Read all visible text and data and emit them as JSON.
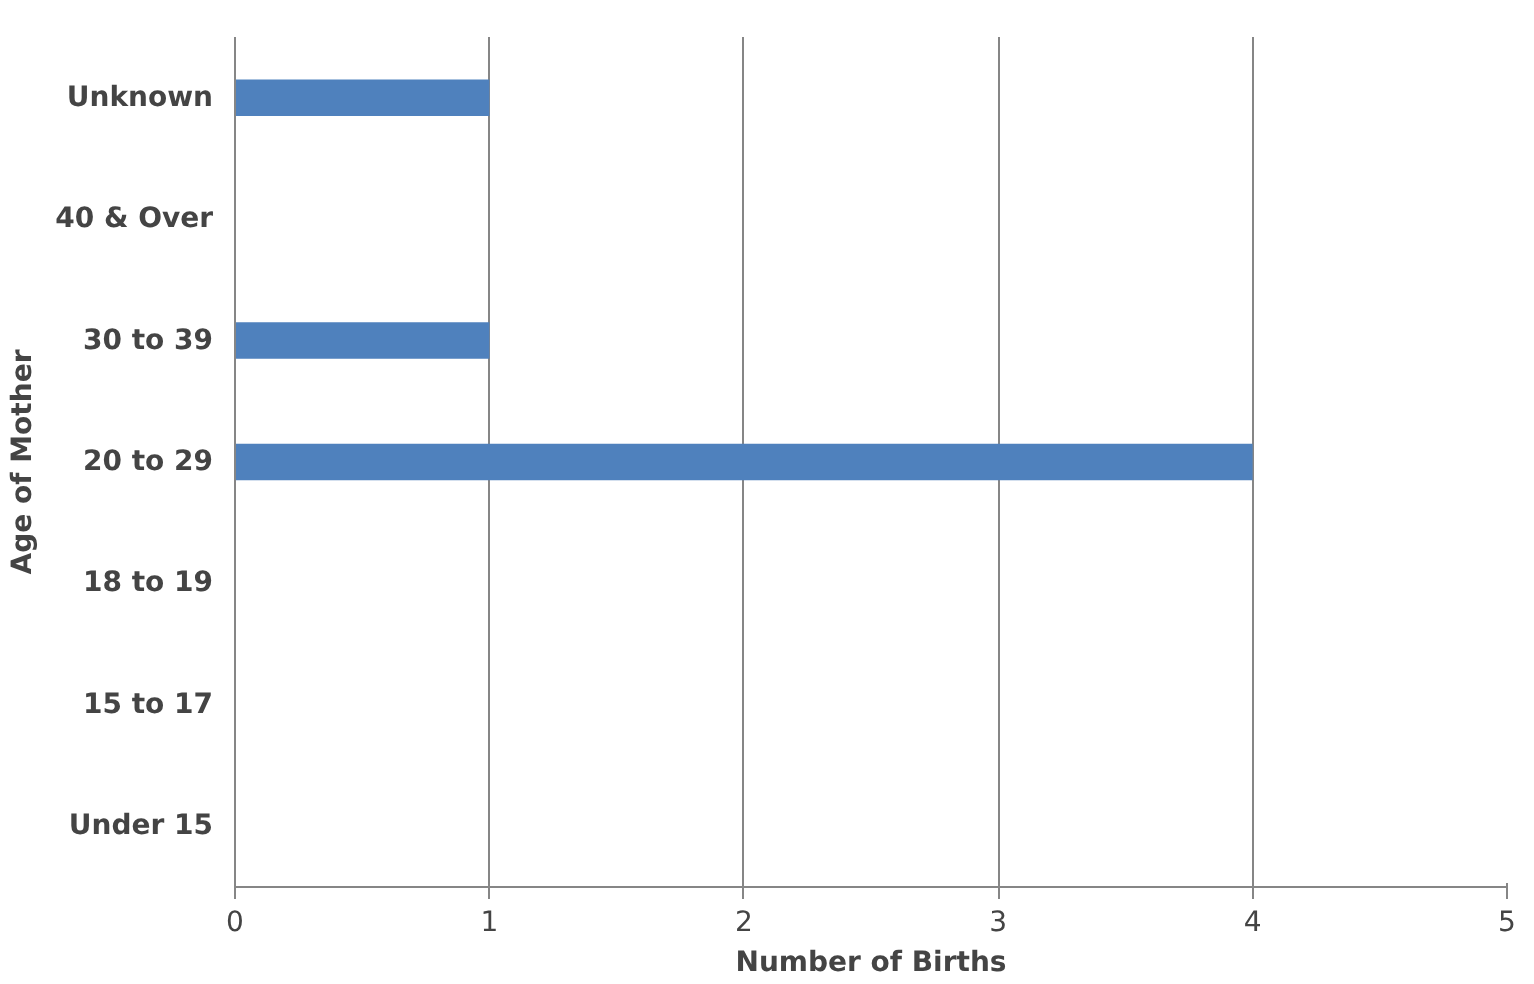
{
  "chart_data": {
    "type": "bar",
    "orientation": "horizontal",
    "xlabel": "Number of Births",
    "ylabel": "Age of Mother",
    "categories": [
      "Unknown",
      "40 & Over",
      "30 to 39",
      "20 to 29",
      "18 to 19",
      "15 to 17",
      "Under 15"
    ],
    "values": [
      1,
      0,
      1,
      4,
      0,
      0,
      0
    ],
    "color": "#4f81bd",
    "xlim": [
      0,
      5
    ],
    "xticks": [
      0,
      1,
      2,
      3,
      4,
      5
    ],
    "grid": "x"
  }
}
